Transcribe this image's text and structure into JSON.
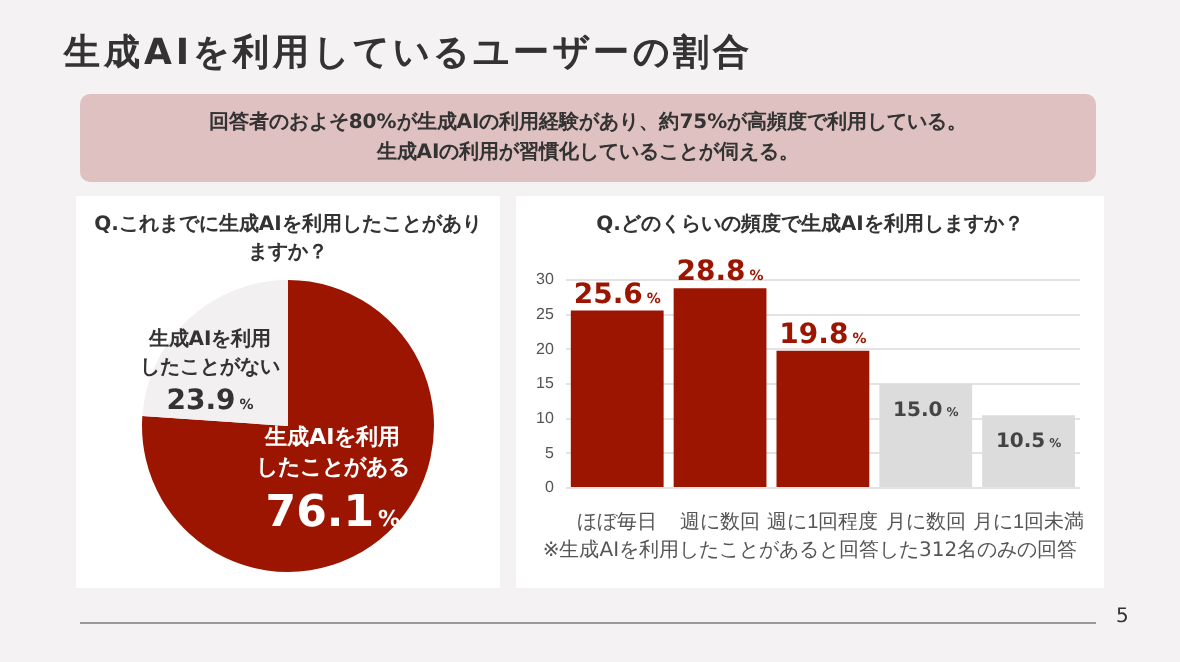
{
  "chart_data": [
    {
      "type": "other",
      "title": "生成AIを利用しているユーザーの割合",
      "annotations": [
        "回答者のおよそ80%が生成AIの利用経験があり、約75%が高頻度で利用している。",
        "生成AIの利用が習慣化していることが伺える。",
        "5"
      ]
    },
    {
      "type": "pie",
      "title": "Q.これまでに生成AIを利用したことがありますか？",
      "categories": [
        "生成AIを利用したことがある",
        "生成AIを利用したことがない"
      ],
      "values": [
        76.1,
        23.9
      ],
      "colors": [
        "#9b1500",
        "#f2f0f0"
      ],
      "value_labels": [
        "76.1%",
        "23.9%"
      ]
    },
    {
      "type": "bar",
      "title": "Q.どのくらいの頻度で生成AIを利用しますか？",
      "categories": [
        "ほぼ毎日",
        "週に数回",
        "週に1回程度",
        "月に数回",
        "月に1回未満"
      ],
      "values": [
        25.6,
        28.8,
        19.8,
        15.0,
        10.5
      ],
      "colors": [
        "#9b1500",
        "#9b1500",
        "#9b1500",
        "#dcdcdc",
        "#dcdcdc"
      ],
      "value_labels": [
        "25.6%",
        "28.8%",
        "19.8%",
        "15.0%",
        "10.5%"
      ],
      "ylim": [
        0,
        30
      ],
      "yticks": [
        0,
        5,
        10,
        15,
        20,
        25,
        30
      ],
      "grid": "y",
      "annotations": [
        "※生成AIを利用したことがあると回答した312名のみの回答"
      ]
    }
  ]
}
